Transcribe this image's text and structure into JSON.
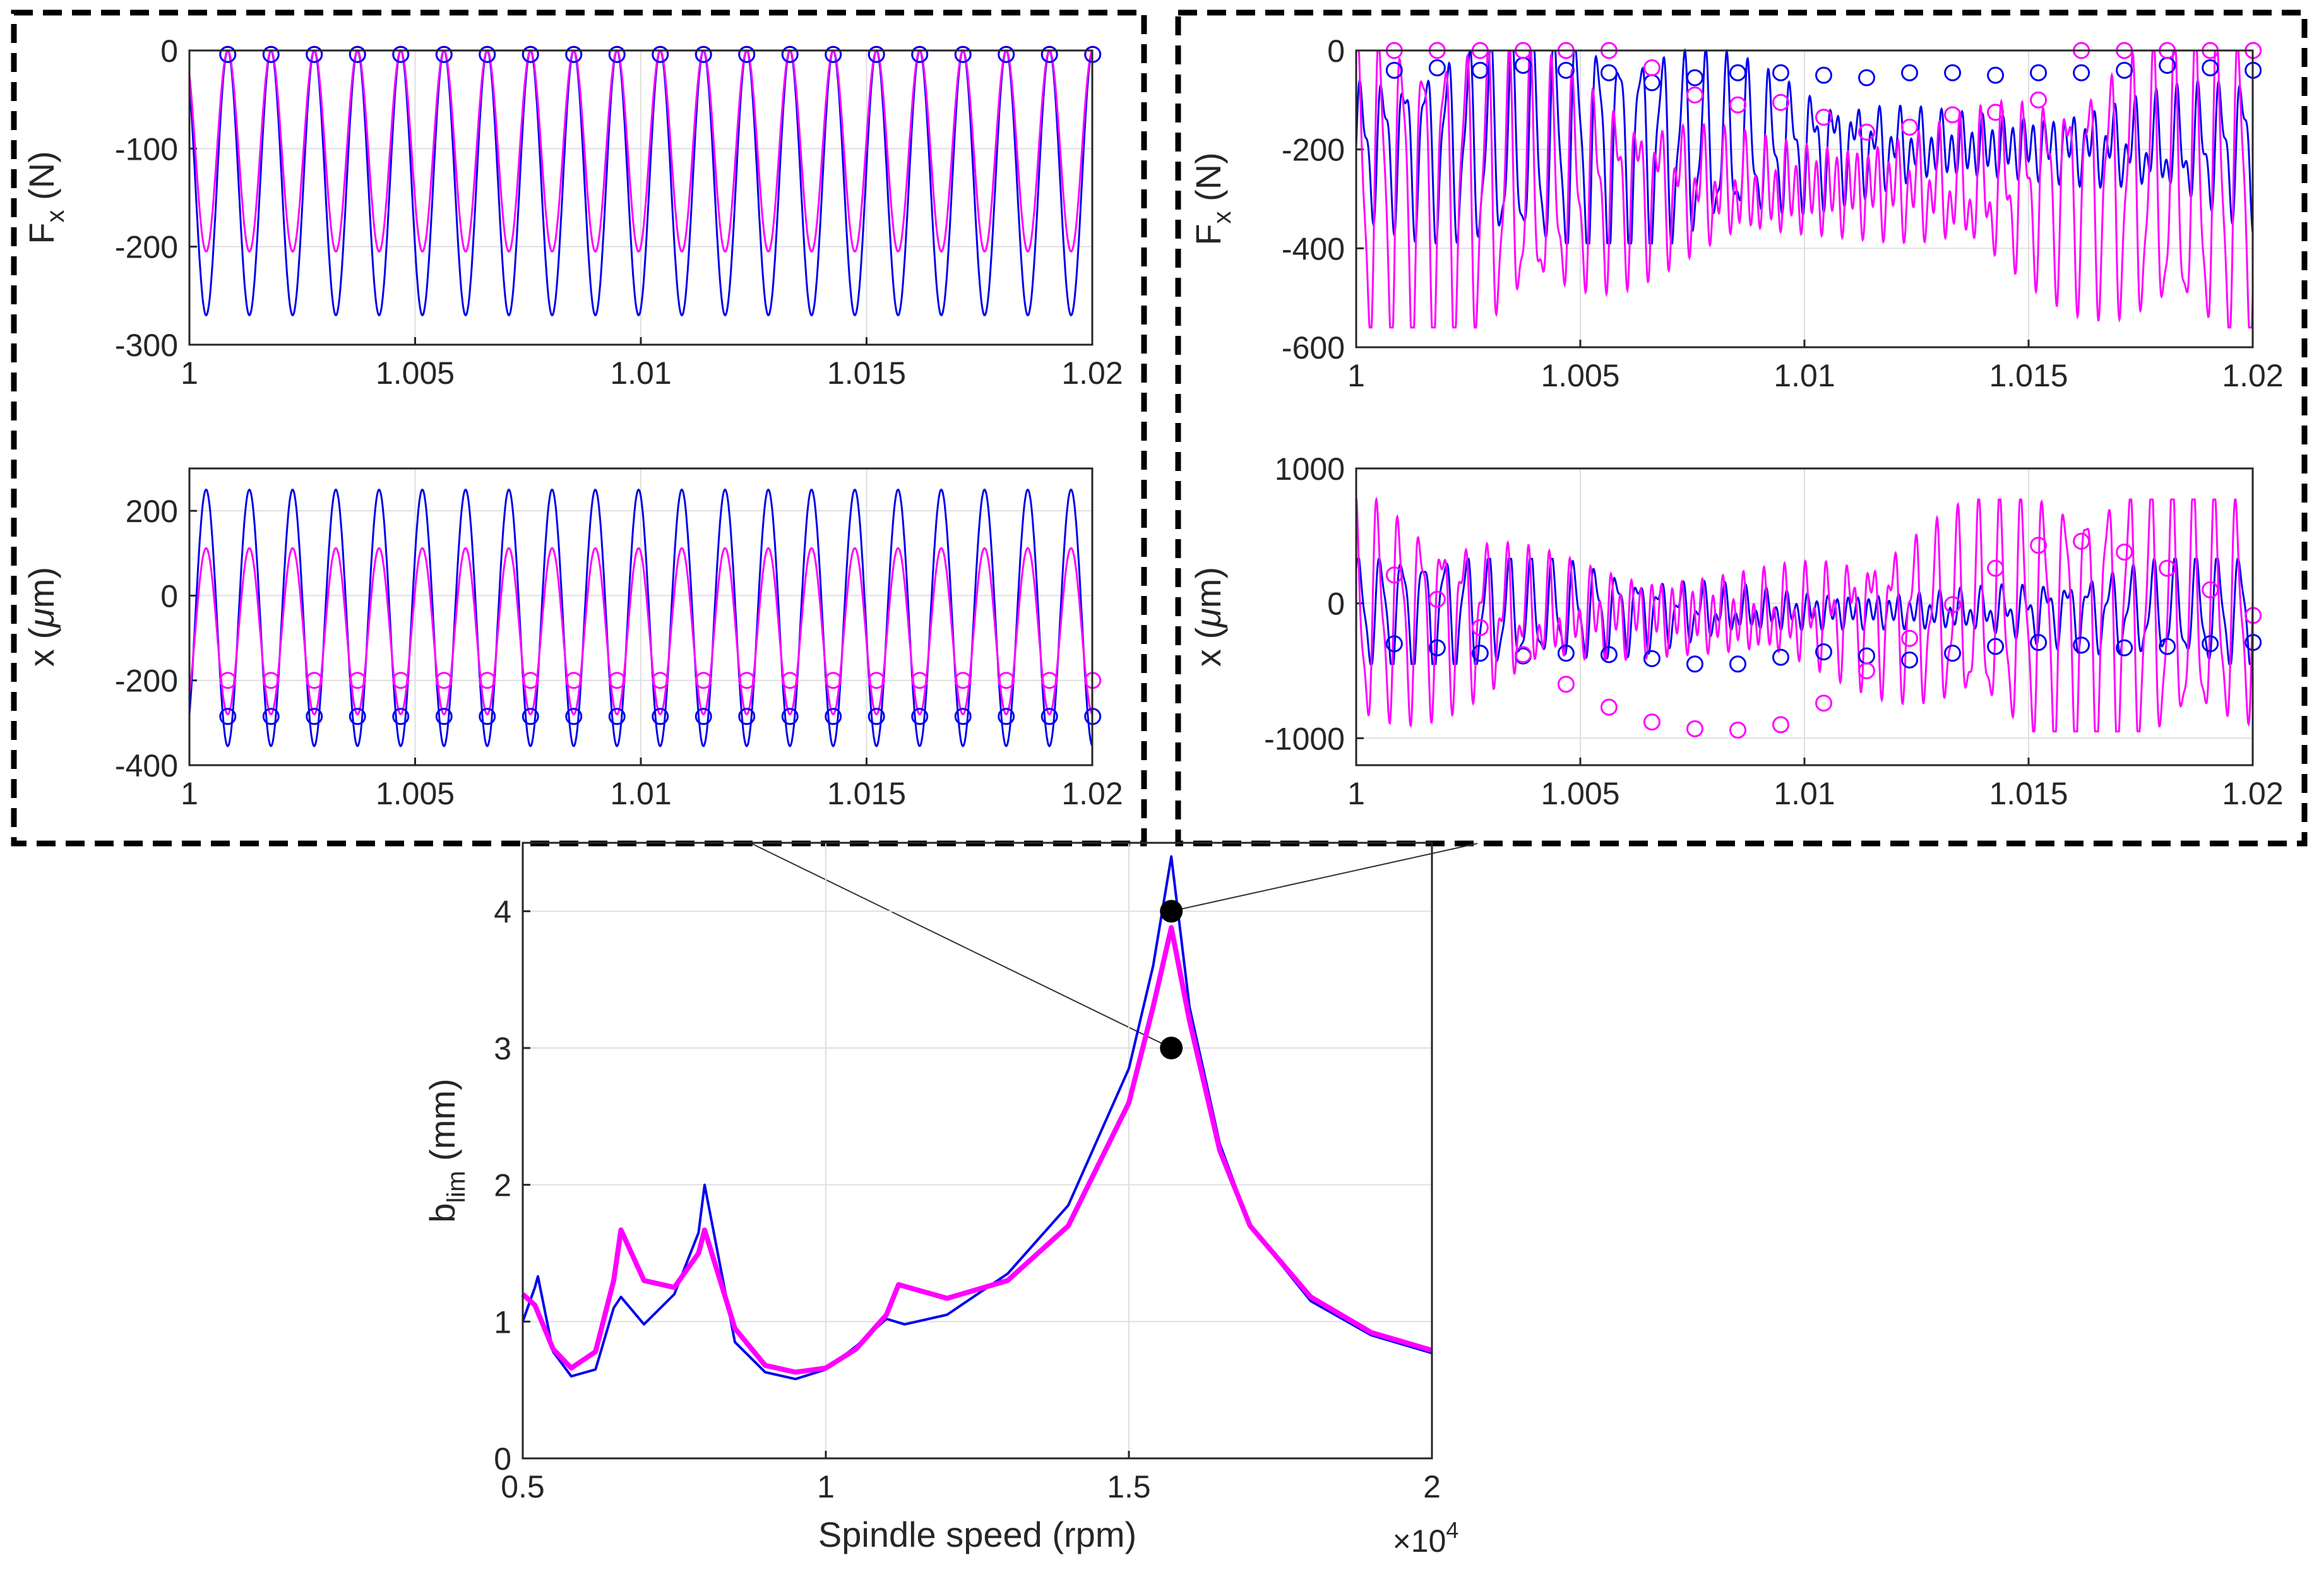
{
  "colors": {
    "blue": "#0000ee",
    "magenta": "#ff00ff",
    "black": "#000000"
  },
  "chart_data": [
    {
      "id": "main",
      "type": "line",
      "title": "",
      "xlabel": "Spindle speed (rpm)",
      "ylabel_main": "b",
      "ylabel_sub": "lim",
      "ylabel_unit": " (mm)",
      "x_exponent_base": "×10",
      "x_exponent_power": "4",
      "xlim": [
        0.5,
        2
      ],
      "ylim": [
        0,
        4.5
      ],
      "xticks": [
        0.5,
        1,
        1.5,
        2
      ],
      "xtick_labels": [
        "0.5",
        "1",
        "1.5",
        "2"
      ],
      "yticks": [
        0,
        1,
        2,
        3,
        4
      ],
      "ytick_labels": [
        "0",
        "1",
        "2",
        "3",
        "4"
      ],
      "grid": true,
      "series": [
        {
          "name": "blue",
          "color": "#0000ee",
          "x": [
            0.5,
            0.52,
            0.525,
            0.55,
            0.58,
            0.62,
            0.65,
            0.662,
            0.7,
            0.75,
            0.79,
            0.8,
            0.85,
            0.9,
            0.95,
            1.0,
            1.05,
            1.1,
            1.13,
            1.2,
            1.3,
            1.4,
            1.5,
            1.54,
            1.57,
            1.6,
            1.65,
            1.7,
            1.8,
            1.9,
            2.0
          ],
          "y": [
            1.0,
            1.25,
            1.33,
            0.78,
            0.6,
            0.65,
            1.1,
            1.18,
            0.98,
            1.2,
            1.65,
            2.0,
            0.85,
            0.63,
            0.58,
            0.65,
            0.82,
            1.02,
            0.98,
            1.05,
            1.35,
            1.85,
            2.85,
            3.6,
            4.4,
            3.3,
            2.3,
            1.7,
            1.15,
            0.9,
            0.77
          ]
        },
        {
          "name": "magenta",
          "color": "#ff00ff",
          "x": [
            0.5,
            0.52,
            0.55,
            0.58,
            0.62,
            0.65,
            0.662,
            0.7,
            0.75,
            0.79,
            0.8,
            0.85,
            0.9,
            0.95,
            1.0,
            1.05,
            1.1,
            1.12,
            1.2,
            1.3,
            1.4,
            1.5,
            1.54,
            1.57,
            1.6,
            1.65,
            1.7,
            1.8,
            1.9,
            2.0
          ],
          "y": [
            1.2,
            1.12,
            0.8,
            0.66,
            0.78,
            1.3,
            1.67,
            1.3,
            1.25,
            1.5,
            1.67,
            0.95,
            0.68,
            0.63,
            0.66,
            0.8,
            1.05,
            1.27,
            1.17,
            1.3,
            1.7,
            2.6,
            3.3,
            3.88,
            3.2,
            2.25,
            1.7,
            1.18,
            0.92,
            0.79
          ]
        }
      ],
      "markers": [
        {
          "x": 1.57,
          "y": 4.0
        },
        {
          "x": 1.57,
          "y": 3.0
        }
      ]
    },
    {
      "id": "left-top",
      "type": "line",
      "ylabel_main": "F",
      "ylabel_sub": "x",
      "ylabel_unit": " (N)",
      "xlim": [
        1,
        1.02
      ],
      "ylim": [
        -300,
        0
      ],
      "xticks": [
        1,
        1.005,
        1.01,
        1.015,
        1.02
      ],
      "xtick_labels": [
        "1",
        "1.005",
        "1.01",
        "1.015",
        "1.02"
      ],
      "yticks": [
        -300,
        -200,
        -100,
        0
      ],
      "ytick_labels": [
        "-300",
        "-200",
        "-100",
        "0"
      ],
      "series": [
        {
          "name": "blue",
          "color": "#0000ee",
          "period": 0.000958,
          "min": -270,
          "max": 0,
          "phase": 0.00085
        },
        {
          "name": "magenta",
          "color": "#ff00ff",
          "period": 0.000958,
          "min": -205,
          "max": 0,
          "phase": 0.00085
        }
      ],
      "circles": [
        {
          "color": "#ff00ff",
          "y": -4
        },
        {
          "color": "#0000ee",
          "y": -4
        }
      ]
    },
    {
      "id": "left-bottom",
      "type": "line",
      "ylabel_main": "x (",
      "ylabel_mu": "μ",
      "ylabel_unit": "m)",
      "xlim": [
        1,
        1.02
      ],
      "ylim": [
        -400,
        300
      ],
      "xticks": [
        1,
        1.005,
        1.01,
        1.015,
        1.02
      ],
      "xtick_labels": [
        "1",
        "1.005",
        "1.01",
        "1.015",
        "1.02"
      ],
      "yticks": [
        -400,
        -200,
        0,
        200
      ],
      "ytick_labels": [
        "-400",
        "-200",
        "0",
        "200"
      ],
      "series": [
        {
          "name": "blue",
          "color": "#0000ee",
          "period": 0.000958,
          "min": -355,
          "max": 250,
          "phase": 0.00037
        },
        {
          "name": "magenta",
          "color": "#ff00ff",
          "period": 0.000958,
          "min": -280,
          "max": 112,
          "phase": 0.00037
        }
      ],
      "circles": [
        {
          "color": "#ff00ff",
          "y": -200
        },
        {
          "color": "#0000ee",
          "y": -285
        }
      ]
    },
    {
      "id": "right-top",
      "type": "line",
      "ylabel_main": "F",
      "ylabel_sub": "x",
      "ylabel_unit": " (N)",
      "xlim": [
        1,
        1.02
      ],
      "ylim": [
        -600,
        0
      ],
      "xticks": [
        1,
        1.005,
        1.01,
        1.015,
        1.02
      ],
      "xtick_labels": [
        "1",
        "1.005",
        "1.01",
        "1.015",
        "1.02"
      ],
      "yticks": [
        -600,
        -400,
        -200,
        0
      ],
      "ytick_labels": [
        "-600",
        "-400",
        "-200",
        "0"
      ],
      "series": [
        {
          "name": "blue",
          "color": "#0000ee",
          "min": -390,
          "max": 0
        },
        {
          "name": "magenta",
          "color": "#ff00ff",
          "min": -560,
          "max": 0
        }
      ],
      "circles_blue": [
        -40,
        -35,
        -40,
        -30,
        -40,
        -45,
        -65,
        -55,
        -45,
        -45,
        -50,
        -55,
        -45,
        -45,
        -50,
        -45,
        -45,
        -40,
        -30,
        -35,
        -40
      ],
      "circles_magenta": [
        0,
        0,
        0,
        0,
        0,
        0,
        -35,
        -90,
        -110,
        -105,
        -135,
        -165,
        -155,
        -130,
        -125,
        -100,
        0,
        0,
        0,
        0,
        0
      ]
    },
    {
      "id": "right-bottom",
      "type": "line",
      "ylabel_main": "x (",
      "ylabel_mu": "μ",
      "ylabel_unit": "m)",
      "xlim": [
        1,
        1.02
      ],
      "ylim": [
        -1200,
        1000
      ],
      "xticks": [
        1,
        1.005,
        1.01,
        1.015,
        1.02
      ],
      "xtick_labels": [
        "1",
        "1.005",
        "1.01",
        "1.015",
        "1.02"
      ],
      "yticks": [
        -1000,
        0,
        1000
      ],
      "ytick_labels": [
        "-1000",
        "0",
        "1000"
      ],
      "series": [
        {
          "name": "blue",
          "color": "#0000ee",
          "min": -450,
          "max": 330
        },
        {
          "name": "magenta",
          "color": "#ff00ff",
          "min": -950,
          "max": 770
        }
      ],
      "circles_blue": [
        -300,
        -330,
        -370,
        -390,
        -370,
        -380,
        -410,
        -450,
        -450,
        -400,
        -360,
        -390,
        -420,
        -370,
        -320,
        -290,
        -310,
        -330,
        -320,
        -300,
        -290
      ],
      "circles_magenta": [
        210,
        30,
        -180,
        -380,
        -600,
        -770,
        -880,
        -930,
        -940,
        -900,
        -740,
        -500,
        -260,
        -10,
        260,
        430,
        460,
        380,
        260,
        100,
        -90
      ]
    }
  ]
}
